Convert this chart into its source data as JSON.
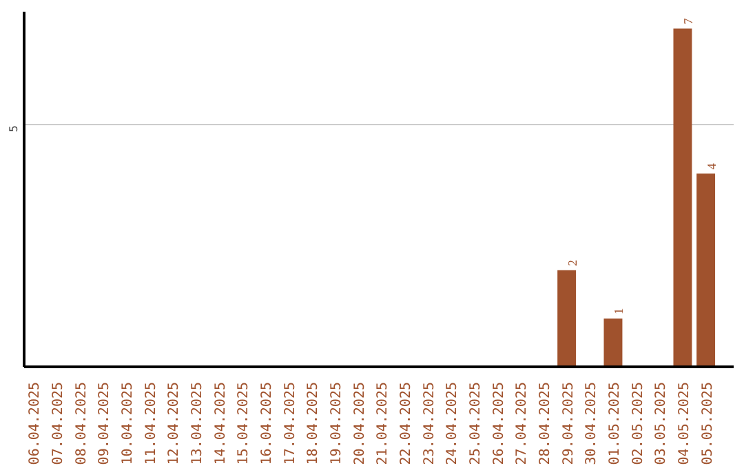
{
  "chart_data": {
    "type": "bar",
    "categories": [
      "06.04.2025",
      "07.04.2025",
      "08.04.2025",
      "09.04.2025",
      "10.04.2025",
      "11.04.2025",
      "12.04.2025",
      "13.04.2025",
      "14.04.2025",
      "15.04.2025",
      "16.04.2025",
      "17.04.2025",
      "18.04.2025",
      "19.04.2025",
      "20.04.2025",
      "21.04.2025",
      "22.04.2025",
      "23.04.2025",
      "24.04.2025",
      "25.04.2025",
      "26.04.2025",
      "27.04.2025",
      "28.04.2025",
      "29.04.2025",
      "30.04.2025",
      "01.05.2025",
      "02.05.2025",
      "03.05.2025",
      "04.05.2025",
      "05.05.2025"
    ],
    "values": [
      null,
      null,
      null,
      null,
      null,
      null,
      null,
      null,
      null,
      null,
      null,
      null,
      null,
      null,
      null,
      null,
      null,
      null,
      null,
      null,
      null,
      null,
      null,
      2,
      null,
      1,
      null,
      null,
      7,
      4
    ],
    "data_labels": true,
    "color": "#a0522d",
    "ylim": [
      0,
      7.35
    ],
    "yticks": [
      5
    ],
    "grid": "y"
  }
}
